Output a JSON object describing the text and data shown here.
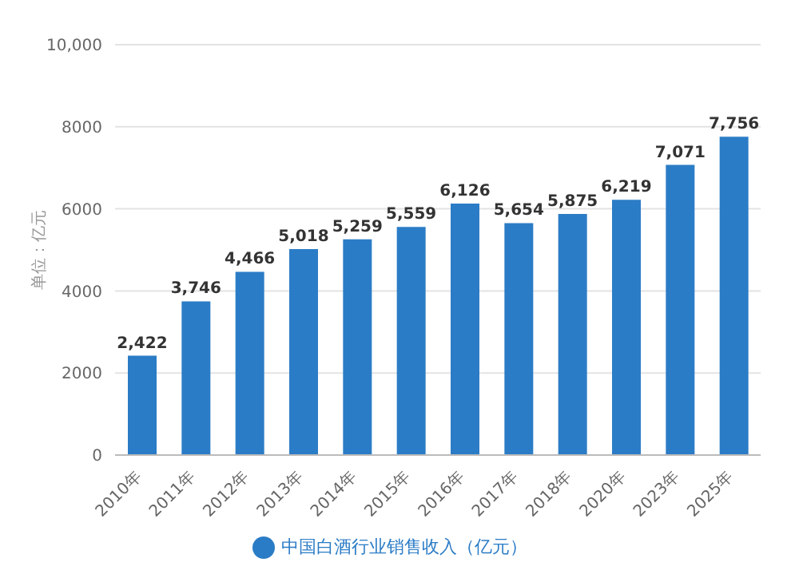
{
  "chart_data": {
    "type": "bar",
    "ylabel": "单位：亿元",
    "categories": [
      "2010年",
      "2011年",
      "2012年",
      "2013年",
      "2014年",
      "2015年",
      "2016年",
      "2017年",
      "2018年",
      "2020年",
      "2023年",
      "2025年"
    ],
    "series": [
      {
        "name": "中国白酒行业销售收入（亿元）",
        "color": "#2b7cc6",
        "values": [
          2422,
          3746,
          4466,
          5018,
          5259,
          5559,
          6126,
          5654,
          5875,
          6219,
          7071,
          7756
        ],
        "value_labels": [
          "2,422",
          "3,746",
          "4,466",
          "5,018",
          "5,259",
          "5,559",
          "6,126",
          "5,654",
          "5,875",
          "6,219",
          "7,071",
          "7,756"
        ]
      }
    ],
    "ylim": [
      0,
      10000
    ],
    "yticks": [
      0,
      2000,
      4000,
      6000,
      {
        "value": 10000,
        "label": "10,000"
      },
      8000
    ],
    "grid": "y",
    "legend": "bottom"
  }
}
